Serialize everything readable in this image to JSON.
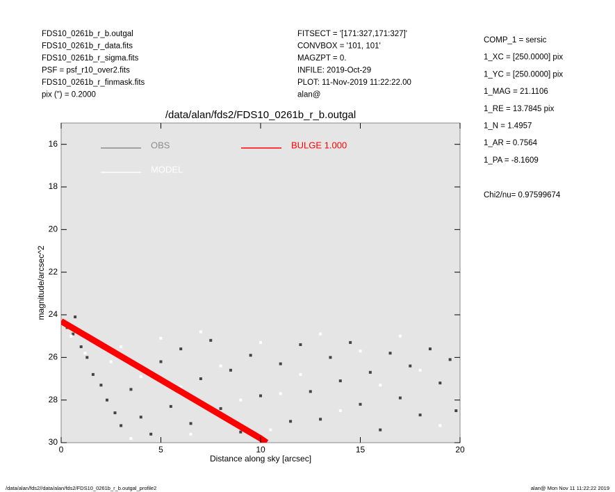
{
  "chart_data": {
    "type": "scatter",
    "title": "/data/alan/fds2/FDS10_0261b_r_b.outgal",
    "xlabel": "Distance along sky [arcsec]",
    "ylabel": "magnitude/arcsec^2",
    "xlim": [
      0,
      20
    ],
    "ylim": [
      30,
      15
    ],
    "xticks": [
      0,
      5,
      10,
      15,
      20
    ],
    "yticks": [
      16,
      18,
      20,
      22,
      24,
      26,
      28,
      30
    ],
    "background": "#e5e5e5",
    "header_left": [
      "FDS10_0261b_r_b.outgal",
      "FDS10_0261b_r_data.fits",
      "FDS10_0261b_r_sigma.fits",
      "PSF    = psf_r10_over2.fits",
      "FDS10_0261b_r_finmask.fits",
      "pix (\") =  0.2000"
    ],
    "header_middle": [
      "FITSECT = '[171:327,171:327]'",
      "CONVBOX = '101, 101'",
      "MAGZPT  =                  0.",
      "INFILE: 2019-Oct-29",
      "PLOT: 11-Nov-2019 11:22:22.00",
      "alan@"
    ],
    "header_right": [
      "COMP_1  = sersic",
      "1_XC    = [250.0000] pix",
      "1_YC    = [250.0000] pix",
      "1_MAG   = 21.1106",
      "1_RE    = 13.7845 pix",
      "1_N     = 1.4957",
      "1_AR    = 0.7564",
      "1_PA    = -8.1609"
    ],
    "chi2_label": "Chi2/nu=      0.97599674",
    "footer_left": "/data/alan/fds2//data/alan/fds2/FDS10_0261b_r_b.outgal_profile2",
    "footer_right": "alan@  Mon Nov 11 11:22:22 2019",
    "series": [
      {
        "name": "OBS",
        "color": "#444444",
        "legend_color": "#8c8c8c",
        "mode": "points",
        "x": [
          0.3,
          0.6,
          0.7,
          1.0,
          1.3,
          1.6,
          2.0,
          2.3,
          2.7,
          3.0,
          3.5,
          4.0,
          4.5,
          5.0,
          5.5,
          6.0,
          6.5,
          7.0,
          7.5,
          8.0,
          8.5,
          9.0,
          9.5,
          10.0,
          11.0,
          11.5,
          12.0,
          12.5,
          13.0,
          13.5,
          14.0,
          14.5,
          15.0,
          15.5,
          16.0,
          16.5,
          17.0,
          17.5,
          18.0,
          18.5,
          19.0,
          19.5,
          19.8
        ],
        "values": [
          24.6,
          24.9,
          24.1,
          25.5,
          26.0,
          26.8,
          27.3,
          28.0,
          28.6,
          29.2,
          27.5,
          28.8,
          29.6,
          26.2,
          28.3,
          25.6,
          29.1,
          27.0,
          25.2,
          28.4,
          26.6,
          29.5,
          25.9,
          27.8,
          26.3,
          29.0,
          25.4,
          27.6,
          28.9,
          26.0,
          27.1,
          25.3,
          28.2,
          26.7,
          29.4,
          25.8,
          27.9,
          26.4,
          28.7,
          25.6,
          27.2,
          26.1,
          28.5
        ]
      },
      {
        "name": "MODEL",
        "color": "#ffffff",
        "legend_color": "#ffffff",
        "mode": "points",
        "x": [
          0.5,
          1.2,
          2.5,
          3.0,
          4.0,
          5.0,
          6.0,
          7.0,
          8.0,
          9.0,
          10.0,
          11.0,
          12.0,
          13.0,
          14.0,
          15.0,
          16.0,
          17.0,
          18.0,
          19.0,
          3.5,
          6.5,
          10.5
        ],
        "values": [
          25.0,
          25.8,
          26.2,
          25.5,
          26.9,
          25.1,
          27.4,
          24.8,
          26.4,
          28.0,
          25.3,
          27.7,
          26.8,
          24.9,
          28.5,
          25.7,
          27.3,
          25.0,
          26.6,
          29.2,
          29.8,
          29.6,
          29.4
        ]
      },
      {
        "name": "BULGE  1.000",
        "color": "#ff0000",
        "legend_color": "#ff0000",
        "mode": "band",
        "x": [
          0,
          2,
          4,
          6,
          8,
          10,
          10.3
        ],
        "values": [
          24.3,
          25.4,
          26.5,
          27.6,
          28.7,
          29.8,
          30.0
        ]
      }
    ]
  }
}
